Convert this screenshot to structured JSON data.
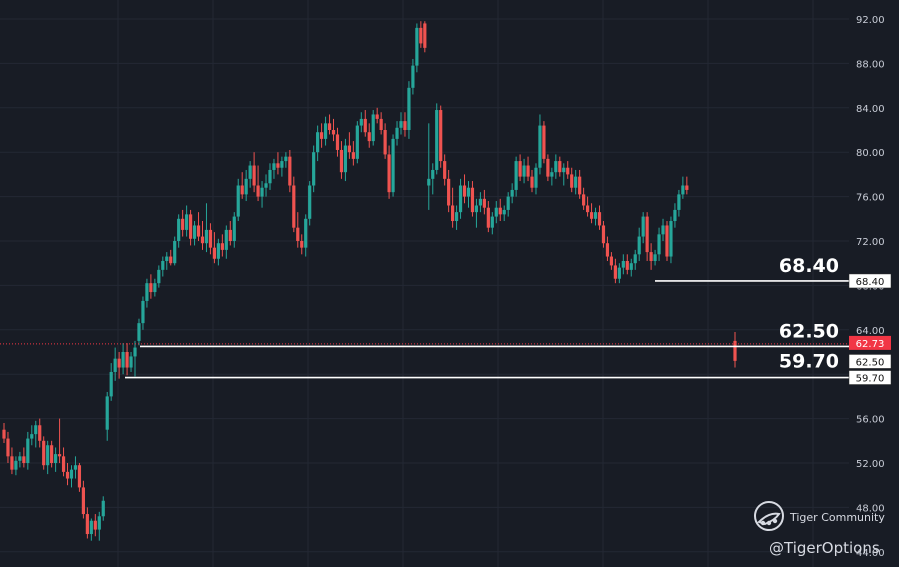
{
  "chart_data": {
    "type": "candlestick",
    "title": "",
    "xlabel": "",
    "ylabel": "",
    "ylim": [
      44,
      93
    ],
    "y_ticks": [
      92,
      88,
      84,
      80,
      76,
      72,
      68,
      64,
      60,
      56,
      52,
      48,
      44
    ],
    "y_tick_labels": [
      "92.00",
      "88.00",
      "84.00",
      "80.00",
      "76.00",
      "72.00",
      "68.00",
      "64.00",
      "60.00",
      "56.00",
      "52.00",
      "48.00",
      "44.00"
    ],
    "grid": true,
    "colors": {
      "up": "#26a69a",
      "down": "#ef5350",
      "level_line": "#ffffff",
      "price_tag": "#f23645",
      "background": "#181c25",
      "grid": "#232834"
    },
    "candles": [
      [
        55.0,
        55.6,
        53.8,
        54.2
      ],
      [
        54.2,
        54.8,
        52.0,
        52.6
      ],
      [
        52.6,
        53.4,
        51.0,
        51.4
      ],
      [
        51.4,
        52.6,
        50.9,
        52.2
      ],
      [
        52.2,
        53.0,
        51.6,
        52.6
      ],
      [
        52.6,
        53.4,
        51.6,
        52.0
      ],
      [
        52.0,
        54.8,
        51.4,
        54.2
      ],
      [
        54.2,
        55.4,
        53.6,
        54.6
      ],
      [
        54.6,
        55.8,
        53.4,
        55.4
      ],
      [
        55.4,
        56.0,
        53.4,
        54.0
      ],
      [
        54.0,
        54.4,
        51.4,
        51.8
      ],
      [
        51.8,
        54.0,
        51.0,
        53.6
      ],
      [
        53.6,
        54.0,
        51.6,
        52.0
      ],
      [
        52.0,
        53.4,
        51.2,
        52.8
      ],
      [
        52.8,
        56.0,
        52.0,
        52.6
      ],
      [
        52.6,
        53.4,
        50.8,
        51.2
      ],
      [
        51.2,
        52.0,
        50.0,
        50.6
      ],
      [
        50.6,
        51.8,
        49.8,
        51.4
      ],
      [
        51.4,
        52.6,
        50.6,
        51.8
      ],
      [
        51.8,
        52.0,
        49.4,
        49.8
      ],
      [
        49.8,
        50.4,
        47.0,
        47.4
      ],
      [
        47.4,
        48.0,
        45.2,
        45.6
      ],
      [
        45.6,
        47.0,
        45.0,
        46.8
      ],
      [
        46.8,
        47.4,
        45.4,
        46.0
      ],
      [
        46.0,
        47.6,
        45.0,
        47.2
      ],
      [
        47.2,
        49.0,
        46.8,
        48.6
      ],
      [
        55.0,
        58.4,
        54.0,
        58.0
      ],
      [
        58.0,
        61.0,
        57.6,
        60.2
      ],
      [
        60.2,
        62.4,
        59.4,
        61.4
      ],
      [
        61.4,
        62.0,
        59.6,
        60.6
      ],
      [
        60.6,
        62.8,
        60.0,
        62.0
      ],
      [
        62.0,
        62.8,
        59.9,
        60.6
      ],
      [
        60.6,
        62.0,
        60.2,
        61.6
      ],
      [
        61.6,
        63.0,
        59.8,
        62.4
      ],
      [
        63.0,
        65.0,
        62.6,
        64.6
      ],
      [
        64.6,
        67.0,
        64.0,
        66.6
      ],
      [
        66.6,
        68.6,
        66.0,
        68.2
      ],
      [
        68.2,
        69.0,
        66.8,
        67.4
      ],
      [
        67.4,
        68.6,
        67.0,
        68.2
      ],
      [
        68.2,
        69.8,
        67.8,
        69.4
      ],
      [
        69.4,
        70.6,
        68.8,
        70.2
      ],
      [
        70.2,
        71.0,
        69.4,
        70.6
      ],
      [
        70.6,
        71.2,
        69.8,
        70.0
      ],
      [
        70.0,
        72.4,
        69.8,
        72.0
      ],
      [
        72.0,
        74.4,
        71.4,
        74.0
      ],
      [
        74.0,
        74.8,
        72.4,
        73.0
      ],
      [
        73.0,
        75.2,
        72.4,
        74.4
      ],
      [
        74.4,
        74.8,
        71.6,
        72.2
      ],
      [
        72.2,
        73.8,
        71.6,
        73.4
      ],
      [
        73.4,
        74.6,
        72.0,
        72.4
      ],
      [
        72.4,
        73.8,
        71.2,
        71.8
      ],
      [
        71.8,
        75.4,
        71.0,
        73.0
      ],
      [
        73.0,
        73.6,
        70.8,
        71.4
      ],
      [
        71.4,
        72.8,
        70.0,
        70.4
      ],
      [
        70.4,
        72.2,
        69.8,
        71.8
      ],
      [
        71.8,
        72.6,
        70.6,
        71.2
      ],
      [
        71.2,
        73.4,
        70.4,
        73.0
      ],
      [
        73.0,
        73.8,
        71.6,
        72.0
      ],
      [
        72.0,
        74.6,
        71.4,
        74.2
      ],
      [
        74.2,
        77.6,
        73.8,
        77.0
      ],
      [
        77.0,
        78.2,
        75.8,
        76.2
      ],
      [
        76.2,
        78.4,
        75.6,
        77.6
      ],
      [
        77.6,
        79.2,
        76.8,
        78.8
      ],
      [
        78.8,
        80.0,
        76.4,
        77.0
      ],
      [
        77.0,
        78.8,
        75.6,
        76.0
      ],
      [
        76.0,
        77.4,
        75.0,
        76.8
      ],
      [
        76.8,
        78.0,
        76.0,
        77.2
      ],
      [
        77.2,
        79.0,
        76.6,
        78.4
      ],
      [
        78.4,
        79.4,
        77.6,
        79.0
      ],
      [
        79.0,
        80.0,
        78.0,
        78.6
      ],
      [
        78.6,
        79.6,
        77.8,
        79.2
      ],
      [
        79.2,
        80.0,
        78.6,
        79.6
      ],
      [
        79.6,
        80.2,
        76.4,
        77.0
      ],
      [
        77.0,
        77.8,
        72.8,
        73.2
      ],
      [
        73.2,
        74.6,
        71.4,
        72.0
      ],
      [
        72.0,
        72.6,
        70.8,
        71.4
      ],
      [
        71.4,
        74.4,
        70.6,
        74.0
      ],
      [
        74.0,
        77.4,
        73.4,
        77.0
      ],
      [
        77.0,
        80.6,
        76.4,
        80.0
      ],
      [
        80.0,
        82.4,
        79.2,
        81.8
      ],
      [
        81.8,
        82.6,
        80.4,
        81.2
      ],
      [
        81.2,
        83.2,
        80.6,
        82.6
      ],
      [
        82.6,
        83.4,
        81.6,
        82.0
      ],
      [
        82.0,
        83.0,
        81.0,
        81.6
      ],
      [
        81.6,
        82.2,
        79.6,
        80.2
      ],
      [
        80.2,
        81.0,
        77.6,
        78.2
      ],
      [
        78.2,
        81.2,
        77.4,
        80.6
      ],
      [
        80.6,
        81.8,
        79.4,
        80.0
      ],
      [
        80.0,
        81.0,
        78.8,
        79.4
      ],
      [
        79.4,
        82.8,
        79.0,
        82.4
      ],
      [
        82.4,
        83.6,
        81.8,
        83.0
      ],
      [
        83.0,
        83.8,
        81.4,
        81.8
      ],
      [
        81.8,
        82.6,
        80.4,
        81.0
      ],
      [
        81.0,
        83.8,
        80.6,
        83.4
      ],
      [
        83.4,
        84.0,
        82.6,
        83.0
      ],
      [
        83.0,
        83.6,
        81.6,
        82.0
      ],
      [
        82.0,
        82.6,
        79.4,
        79.8
      ],
      [
        79.8,
        80.6,
        75.8,
        76.4
      ],
      [
        76.4,
        81.6,
        76.0,
        81.2
      ],
      [
        81.2,
        82.8,
        80.6,
        82.2
      ],
      [
        82.2,
        83.6,
        81.6,
        82.8
      ],
      [
        82.8,
        83.6,
        81.4,
        82.0
      ],
      [
        82.0,
        86.4,
        81.2,
        85.8
      ],
      [
        85.8,
        88.4,
        85.2,
        87.8
      ],
      [
        87.8,
        91.6,
        87.2,
        91.2
      ],
      [
        91.2,
        91.8,
        89.4,
        89.8
      ],
      [
        91.6,
        91.8,
        89.0,
        89.4
      ],
      [
        77.0,
        82.6,
        74.8,
        77.6
      ],
      [
        77.6,
        79.0,
        76.2,
        78.4
      ],
      [
        78.4,
        84.4,
        78.0,
        83.8
      ],
      [
        83.8,
        84.2,
        78.6,
        79.2
      ],
      [
        79.2,
        79.8,
        77.0,
        77.6
      ],
      [
        77.6,
        78.4,
        74.6,
        75.2
      ],
      [
        75.2,
        76.8,
        73.2,
        73.8
      ],
      [
        73.8,
        75.2,
        73.0,
        74.6
      ],
      [
        74.6,
        77.6,
        74.0,
        77.0
      ],
      [
        77.0,
        78.0,
        75.4,
        76.0
      ],
      [
        76.0,
        77.4,
        75.0,
        76.8
      ],
      [
        76.8,
        77.4,
        74.2,
        74.6
      ],
      [
        74.6,
        75.8,
        73.2,
        75.2
      ],
      [
        75.2,
        76.4,
        74.6,
        75.8
      ],
      [
        75.8,
        76.6,
        74.4,
        75.0
      ],
      [
        75.0,
        75.6,
        72.8,
        73.2
      ],
      [
        73.2,
        74.6,
        72.6,
        74.2
      ],
      [
        74.2,
        75.6,
        73.6,
        75.0
      ],
      [
        75.0,
        75.8,
        73.8,
        74.4
      ],
      [
        74.4,
        75.2,
        73.8,
        74.8
      ],
      [
        74.8,
        76.4,
        74.2,
        76.0
      ],
      [
        76.0,
        77.2,
        75.4,
        76.6
      ],
      [
        76.6,
        79.6,
        76.0,
        79.2
      ],
      [
        79.2,
        79.8,
        77.4,
        77.8
      ],
      [
        77.8,
        79.4,
        77.2,
        78.8
      ],
      [
        78.8,
        79.6,
        77.4,
        77.8
      ],
      [
        77.8,
        78.4,
        76.4,
        76.8
      ],
      [
        76.8,
        79.0,
        76.2,
        78.6
      ],
      [
        78.6,
        83.4,
        78.0,
        82.4
      ],
      [
        82.4,
        82.8,
        79.0,
        79.4
      ],
      [
        79.4,
        79.8,
        77.4,
        77.8
      ],
      [
        77.8,
        78.6,
        77.0,
        78.2
      ],
      [
        78.2,
        79.8,
        77.6,
        79.2
      ],
      [
        79.2,
        79.6,
        77.8,
        78.2
      ],
      [
        78.2,
        79.0,
        77.0,
        78.6
      ],
      [
        78.6,
        79.2,
        77.6,
        78.0
      ],
      [
        78.0,
        78.6,
        76.4,
        76.8
      ],
      [
        76.8,
        78.4,
        76.2,
        77.8
      ],
      [
        77.8,
        78.4,
        75.8,
        76.2
      ],
      [
        76.2,
        76.8,
        74.8,
        75.2
      ],
      [
        75.2,
        76.0,
        74.2,
        74.6
      ],
      [
        74.6,
        75.4,
        73.6,
        74.0
      ],
      [
        74.0,
        75.0,
        73.4,
        74.6
      ],
      [
        74.6,
        75.2,
        73.0,
        73.4
      ],
      [
        73.4,
        73.8,
        71.4,
        71.8
      ],
      [
        71.8,
        72.4,
        70.2,
        70.6
      ],
      [
        70.6,
        71.0,
        69.4,
        69.8
      ],
      [
        69.8,
        70.4,
        68.2,
        68.6
      ],
      [
        68.6,
        70.0,
        68.2,
        69.6
      ],
      [
        69.6,
        70.8,
        69.0,
        70.2
      ],
      [
        70.2,
        70.8,
        69.0,
        69.4
      ],
      [
        69.4,
        70.4,
        68.8,
        70.0
      ],
      [
        70.0,
        71.2,
        69.4,
        70.8
      ],
      [
        70.8,
        73.2,
        70.2,
        72.4
      ],
      [
        72.4,
        74.6,
        71.8,
        74.2
      ],
      [
        74.2,
        74.6,
        70.2,
        71.0
      ],
      [
        71.0,
        71.8,
        69.4,
        70.2
      ],
      [
        70.2,
        71.2,
        69.8,
        70.8
      ],
      [
        70.8,
        73.2,
        70.2,
        72.6
      ],
      [
        72.6,
        74.0,
        72.0,
        73.4
      ],
      [
        73.4,
        73.8,
        70.2,
        70.6
      ],
      [
        70.6,
        74.2,
        70.0,
        73.8
      ],
      [
        73.8,
        75.4,
        73.2,
        74.8
      ],
      [
        74.8,
        76.6,
        74.2,
        76.2
      ],
      [
        76.2,
        77.8,
        75.8,
        77.0
      ],
      [
        77.0,
        77.8,
        76.2,
        76.6
      ],
      [
        63.0,
        63.8,
        60.6,
        61.2
      ]
    ],
    "last_price": "62.73",
    "levels": [
      {
        "value": 68.4,
        "label": "68.40",
        "tag": "68.40"
      },
      {
        "value": 62.5,
        "label": "62.50",
        "tag": "62.50"
      },
      {
        "value": 59.7,
        "label": "59.70",
        "tag": "59.70"
      }
    ]
  },
  "watermark": {
    "brand": "Tiger Community",
    "handle": "@TigerOptions",
    "logo_icon": "tiger-community-logo"
  }
}
